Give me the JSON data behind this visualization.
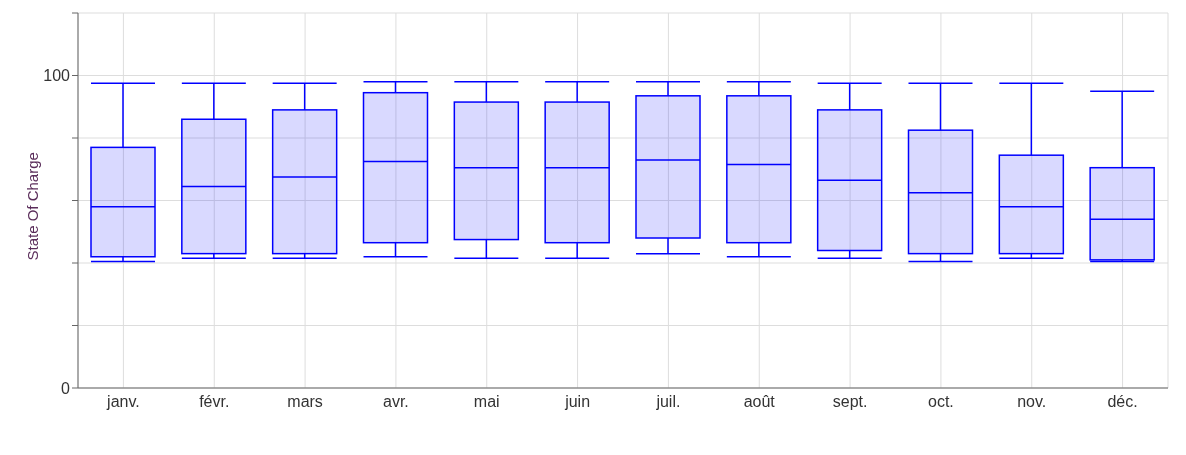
{
  "chart_data": {
    "type": "box",
    "ylabel": "State Of Charge",
    "categories": [
      "janv.",
      "févr.",
      "mars",
      "avr.",
      "mai",
      "juin",
      "juil.",
      "août",
      "sept.",
      "oct.",
      "nov.",
      "déc."
    ],
    "series": [
      {
        "color": "#0000ff",
        "boxes": [
          {
            "low": 40.5,
            "q1": 42,
            "median": 58,
            "q3": 77,
            "high": 97.5
          },
          {
            "low": 41.5,
            "q1": 43,
            "median": 64.5,
            "q3": 86,
            "high": 97.5
          },
          {
            "low": 41.5,
            "q1": 43,
            "median": 67.5,
            "q3": 89,
            "high": 97.5
          },
          {
            "low": 42,
            "q1": 46.5,
            "median": 72.5,
            "q3": 94.5,
            "high": 98
          },
          {
            "low": 41.5,
            "q1": 47.5,
            "median": 70.5,
            "q3": 91.5,
            "high": 98
          },
          {
            "low": 41.5,
            "q1": 46.5,
            "median": 70.5,
            "q3": 91.5,
            "high": 98
          },
          {
            "low": 43,
            "q1": 48,
            "median": 73,
            "q3": 93.5,
            "high": 98
          },
          {
            "low": 42,
            "q1": 46.5,
            "median": 71.5,
            "q3": 93.5,
            "high": 98
          },
          {
            "low": 41.5,
            "q1": 44,
            "median": 66.5,
            "q3": 89,
            "high": 97.5
          },
          {
            "low": 40.5,
            "q1": 43,
            "median": 62.5,
            "q3": 82.5,
            "high": 97.5
          },
          {
            "low": 41.5,
            "q1": 43,
            "median": 58,
            "q3": 74.5,
            "high": 97.5
          },
          {
            "low": 40.5,
            "q1": 41,
            "median": 54,
            "q3": 70.5,
            "high": 95
          }
        ]
      }
    ],
    "ylim": [
      0,
      120
    ],
    "yticks": [
      0,
      {
        "value": 20,
        "label": null
      },
      {
        "value": 40,
        "label": null
      },
      {
        "value": 60,
        "label": null
      },
      {
        "value": 80,
        "label": null
      },
      100,
      {
        "value": 120,
        "label": null
      }
    ],
    "grid": true
  }
}
